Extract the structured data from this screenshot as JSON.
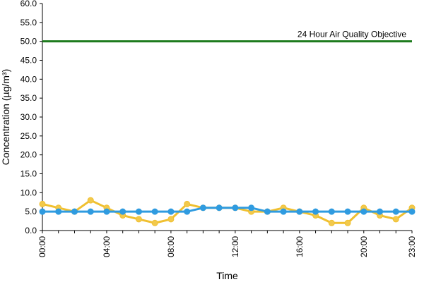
{
  "chart_data": {
    "type": "line",
    "xlabel": "Time",
    "ylabel": "Concentration (µg/m³)",
    "ylim": [
      0,
      60
    ],
    "y_ticks": [
      0,
      5,
      10,
      15,
      20,
      25,
      30,
      35,
      40,
      45,
      50,
      55,
      60
    ],
    "x": [
      "00:00",
      "01:00",
      "02:00",
      "03:00",
      "04:00",
      "05:00",
      "06:00",
      "07:00",
      "08:00",
      "09:00",
      "10:00",
      "11:00",
      "12:00",
      "13:00",
      "14:00",
      "15:00",
      "16:00",
      "17:00",
      "18:00",
      "19:00",
      "20:00",
      "21:00",
      "22:00",
      "23:00"
    ],
    "x_tick_labels": [
      "00:00",
      "04:00",
      "08:00",
      "12:00",
      "16:00",
      "20:00",
      "23:00"
    ],
    "grid": false,
    "series": [
      {
        "color": "#f0c030",
        "marker_color": "#f2c94c",
        "values": [
          7,
          6,
          5,
          8,
          6,
          4,
          3,
          2,
          3,
          7,
          6,
          6,
          6,
          5,
          5,
          6,
          5,
          4,
          2,
          2,
          6,
          4,
          3,
          6
        ]
      },
      {
        "color": "#2f9be0",
        "marker_color": "#2f9be0",
        "values": [
          5,
          5,
          5,
          5,
          5,
          5,
          5,
          5,
          5,
          5,
          6,
          6,
          6,
          6,
          5,
          5,
          5,
          5,
          5,
          5,
          5,
          5,
          5,
          5
        ]
      }
    ],
    "reference_line": {
      "label": "24 Hour Air Quality Objective",
      "value": 50,
      "color": "#1e7b1e"
    }
  }
}
